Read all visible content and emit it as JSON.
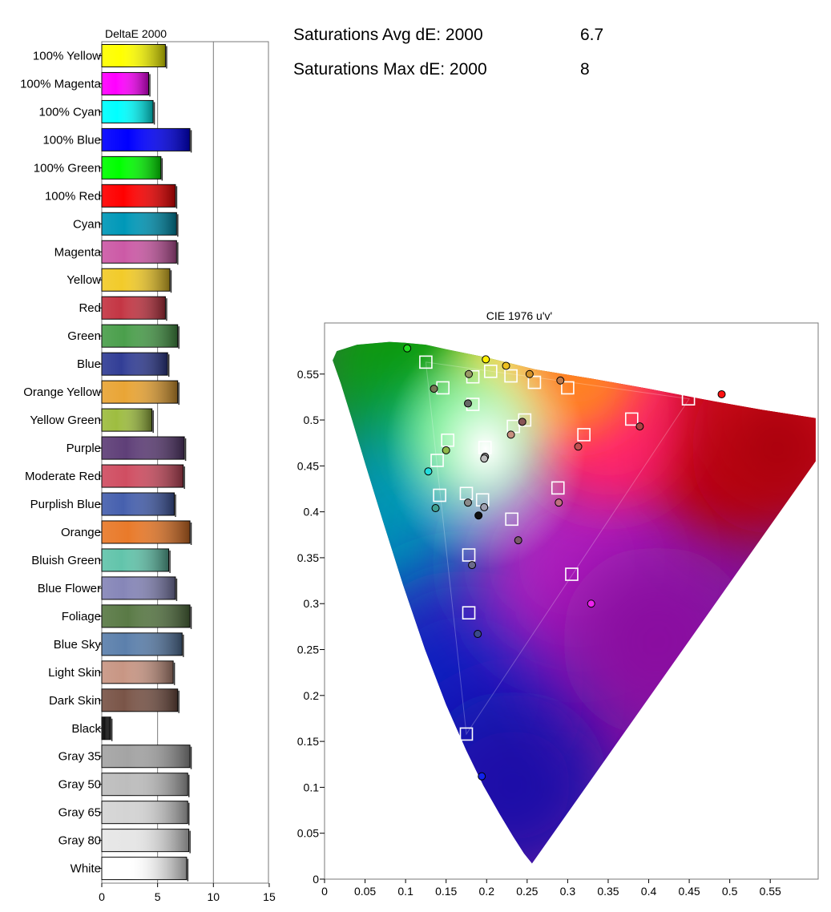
{
  "stats": {
    "avg_label": "Saturations Avg dE:  2000",
    "avg_value": "6.7",
    "max_label": "Saturations Max dE: 2000",
    "max_value": "8"
  },
  "chart_data": [
    {
      "type": "bar",
      "orientation": "horizontal",
      "title": "DeltaE 2000",
      "xlim": [
        0,
        15
      ],
      "xticks": [
        "0",
        "5",
        "10",
        "15"
      ],
      "grid": "vertical lines at 5 and 10",
      "categories": [
        "100% Yellow",
        "100% Magenta",
        "100% Cyan",
        "100% Blue",
        "100% Green",
        "100% Red",
        "Cyan",
        "Magenta",
        "Yellow",
        "Red",
        "Green",
        "Blue",
        "Orange Yellow",
        "Yellow Green",
        "Purple",
        "Moderate Red",
        "Purplish Blue",
        "Orange",
        "Bluish Green",
        "Blue Flower",
        "Foliage",
        "Blue Sky",
        "Light Skin",
        "Dark Skin",
        "Black",
        "Gray 35",
        "Gray 50",
        "Gray 65",
        "Gray 80",
        "White"
      ],
      "values": [
        5.7,
        4.2,
        4.6,
        7.9,
        5.3,
        6.6,
        6.7,
        6.7,
        6.1,
        5.7,
        6.8,
        5.9,
        6.8,
        4.5,
        7.4,
        7.3,
        6.5,
        7.9,
        6.0,
        6.6,
        7.9,
        7.2,
        6.4,
        6.8,
        0.8,
        7.9,
        7.7,
        7.7,
        7.8,
        7.6
      ],
      "colors": [
        "#ffff00",
        "#ff00ff",
        "#00ffff",
        "#0000ff",
        "#00ff00",
        "#ff0000",
        "#0098b8",
        "#cc5aa6",
        "#f2cb2a",
        "#c43644",
        "#4b9f4c",
        "#323e96",
        "#e9a536",
        "#9ebd40",
        "#5f3f78",
        "#d04e62",
        "#4660ae",
        "#e97a2a",
        "#62c4ab",
        "#8686b8",
        "#5a7a46",
        "#5c80ac",
        "#c89684",
        "#7a5548",
        "#111111",
        "#a4a4a4",
        "#bdbdbd",
        "#d4d4d4",
        "#e6e6e6",
        "#ffffff"
      ]
    },
    {
      "type": "scatter",
      "title": "CIE 1976 u'v'",
      "xlim": [
        0,
        0.6
      ],
      "ylim": [
        0,
        0.6
      ],
      "xticks": [
        "0",
        "0.05",
        "0.1",
        "0.15",
        "0.2",
        "0.25",
        "0.3",
        "0.35",
        "0.4",
        "0.45",
        "0.5",
        "0.55"
      ],
      "yticks": [
        "0",
        "0.05",
        "0.1",
        "0.15",
        "0.2",
        "0.25",
        "0.3",
        "0.35",
        "0.4",
        "0.45",
        "0.5",
        "0.55"
      ],
      "gamut_triangle": [
        [
          0.45,
          0.523
        ],
        [
          0.125,
          0.563
        ],
        [
          0.175,
          0.158
        ]
      ],
      "measured_points": [
        {
          "u": 0.102,
          "v": 0.578,
          "color": "#22dd22"
        },
        {
          "u": 0.199,
          "v": 0.566,
          "color": "#ffee00"
        },
        {
          "u": 0.224,
          "v": 0.559,
          "color": "#eec020"
        },
        {
          "u": 0.178,
          "v": 0.55,
          "color": "#999966"
        },
        {
          "u": 0.253,
          "v": 0.55,
          "color": "#d4942a"
        },
        {
          "u": 0.291,
          "v": 0.543,
          "color": "#c07a4a"
        },
        {
          "u": 0.135,
          "v": 0.534,
          "color": "#777755"
        },
        {
          "u": 0.49,
          "v": 0.528,
          "color": "#ff1111"
        },
        {
          "u": 0.177,
          "v": 0.518,
          "color": "#666666"
        },
        {
          "u": 0.244,
          "v": 0.498,
          "color": "#885555"
        },
        {
          "u": 0.389,
          "v": 0.493,
          "color": "#aa4444"
        },
        {
          "u": 0.23,
          "v": 0.484,
          "color": "#c89080"
        },
        {
          "u": 0.313,
          "v": 0.471,
          "color": "#c05050"
        },
        {
          "u": 0.15,
          "v": 0.467,
          "color": "#8fb84a"
        },
        {
          "u": 0.198,
          "v": 0.46,
          "color": "#888888"
        },
        {
          "u": 0.197,
          "v": 0.458,
          "color": "#bbbbbb"
        },
        {
          "u": 0.128,
          "v": 0.444,
          "color": "#22dddd"
        },
        {
          "u": 0.177,
          "v": 0.41,
          "color": "#8a8a8a"
        },
        {
          "u": 0.289,
          "v": 0.41,
          "color": "#c07080"
        },
        {
          "u": 0.197,
          "v": 0.405,
          "color": "#a0a0b0"
        },
        {
          "u": 0.137,
          "v": 0.404,
          "color": "#40a090"
        },
        {
          "u": 0.19,
          "v": 0.396,
          "color": "#111111"
        },
        {
          "u": 0.239,
          "v": 0.369,
          "color": "#7a5a6a"
        },
        {
          "u": 0.182,
          "v": 0.342,
          "color": "#6a6a8a"
        },
        {
          "u": 0.329,
          "v": 0.3,
          "color": "#ee22ee"
        },
        {
          "u": 0.189,
          "v": 0.267,
          "color": "#3a4a8a"
        },
        {
          "u": 0.194,
          "v": 0.112,
          "color": "#1122ee"
        }
      ],
      "target_points": [
        {
          "u": 0.125,
          "v": 0.563
        },
        {
          "u": 0.183,
          "v": 0.547
        },
        {
          "u": 0.205,
          "v": 0.553
        },
        {
          "u": 0.23,
          "v": 0.548
        },
        {
          "u": 0.259,
          "v": 0.541
        },
        {
          "u": 0.3,
          "v": 0.535
        },
        {
          "u": 0.146,
          "v": 0.535
        },
        {
          "u": 0.449,
          "v": 0.523
        },
        {
          "u": 0.183,
          "v": 0.517
        },
        {
          "u": 0.247,
          "v": 0.5
        },
        {
          "u": 0.379,
          "v": 0.501
        },
        {
          "u": 0.233,
          "v": 0.493
        },
        {
          "u": 0.32,
          "v": 0.484
        },
        {
          "u": 0.152,
          "v": 0.478
        },
        {
          "u": 0.198,
          "v": 0.47
        },
        {
          "u": 0.139,
          "v": 0.456
        },
        {
          "u": 0.288,
          "v": 0.426
        },
        {
          "u": 0.175,
          "v": 0.42
        },
        {
          "u": 0.142,
          "v": 0.418
        },
        {
          "u": 0.195,
          "v": 0.413
        },
        {
          "u": 0.231,
          "v": 0.392
        },
        {
          "u": 0.178,
          "v": 0.353
        },
        {
          "u": 0.305,
          "v": 0.332
        },
        {
          "u": 0.178,
          "v": 0.29
        },
        {
          "u": 0.175,
          "v": 0.158
        }
      ]
    }
  ]
}
